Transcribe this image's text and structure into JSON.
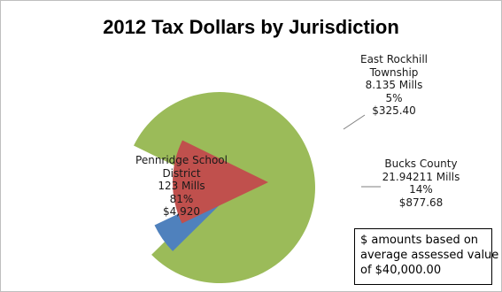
{
  "chart_data": {
    "type": "pie",
    "title": "2012 Tax Dollars by Jurisdiction",
    "slices": [
      {
        "label": "Pennridge School District",
        "mills": "123 Mills",
        "percent": "81%",
        "amount": "$4,920",
        "value": 4920,
        "color": "#9bbb59"
      },
      {
        "label": "East Rockhill Township",
        "mills": "8.135 Mills",
        "percent": "5%",
        "amount": "$325.40",
        "value": 325.4,
        "color": "#4f81bd"
      },
      {
        "label": "Bucks County",
        "mills": "21.94211 Mills",
        "percent": "14%",
        "amount": "$877.68",
        "value": 877.68,
        "color": "#c0504d"
      }
    ],
    "exploded": true
  },
  "labels": {
    "pennridge": [
      "Pennridge School",
      "District",
      "123 Mills",
      "81%",
      "$4,920"
    ],
    "east_rockhill": [
      "East Rockhill",
      "Township",
      "8.135 Mills",
      "5%",
      "$325.40"
    ],
    "bucks": [
      "Bucks County",
      "21.94211 Mills",
      "14%",
      "$877.68"
    ]
  },
  "note": {
    "line1": "$ amounts based on",
    "line2": "average assessed value",
    "line3": "of $40,000.00"
  }
}
